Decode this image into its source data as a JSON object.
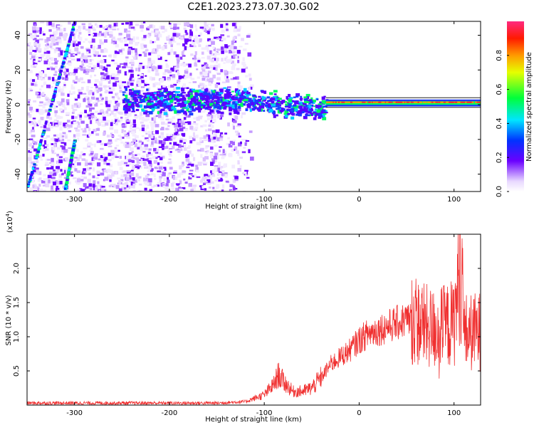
{
  "title": "C2E1.2023.273.07.30.G02",
  "colors": {
    "spectro_low": "#f1e6ff",
    "spectro_mid": "#7a1cff",
    "trace": "#f03030",
    "line": "#222222"
  },
  "chart_data": [
    {
      "type": "heatmap",
      "xlabel": "Height of straight line (km)",
      "ylabel": "Frequency (Hz)",
      "xlim": [
        -350,
        128
      ],
      "ylim": [
        -50,
        48
      ],
      "xticks": [
        -300,
        -200,
        -100,
        0,
        100
      ],
      "yticks": [
        -40,
        -20,
        0,
        20,
        40
      ],
      "colorbar": {
        "label": "Normalized spectral amplitude",
        "ticks": [
          "0.0",
          "0.2",
          "0.4",
          "0.6",
          "0.8"
        ],
        "range": [
          0,
          1
        ]
      },
      "features": [
        {
          "x": [
            -350,
            -300
          ],
          "y": [
            -48,
            48
          ],
          "desc": "sloped streak"
        },
        {
          "x": [
            -310,
            -300
          ],
          "y": [
            -48,
            -20
          ],
          "desc": "sloped streak"
        },
        {
          "x": [
            -250,
            -120
          ],
          "y": [
            3,
            3
          ]
        },
        {
          "x": [
            -120,
            -35
          ],
          "y": [
            3,
            -2
          ]
        },
        {
          "x": [
            -35,
            128
          ],
          "y": [
            0,
            1
          ]
        }
      ]
    },
    {
      "type": "line",
      "xlabel": "Height of straight line (km)",
      "ylabel": "SNR (10 * v/v)",
      "exponent_label": "(x10",
      "exponent_sup": "4",
      "xlim": [
        -350,
        128
      ],
      "ylim": [
        0,
        25000
      ],
      "xticks": [
        -300,
        -200,
        -100,
        0,
        100
      ],
      "yticks": [
        5000,
        10000,
        15000,
        20000
      ],
      "ytick_labels": [
        "0.5",
        "1.0",
        "1.5",
        "2.0"
      ],
      "series": [
        {
          "x": [
            -350,
            -300,
            -250,
            -200,
            -150,
            -120,
            -100,
            -90,
            -85,
            -80,
            -70,
            -60,
            -50,
            -40,
            -30,
            -20,
            -10,
            0,
            10,
            20,
            30,
            40,
            50,
            60,
            70,
            80,
            90,
            100,
            105,
            108,
            110,
            115,
            128
          ],
          "y": [
            300,
            300,
            300,
            300,
            300,
            500,
            1500,
            3000,
            4500,
            3500,
            2000,
            2000,
            2500,
            4000,
            6000,
            7000,
            8000,
            9500,
            10500,
            11000,
            11500,
            12000,
            12500,
            12500,
            11500,
            11000,
            11500,
            12000,
            18000,
            22000,
            11000,
            10500,
            10800
          ]
        }
      ]
    }
  ]
}
